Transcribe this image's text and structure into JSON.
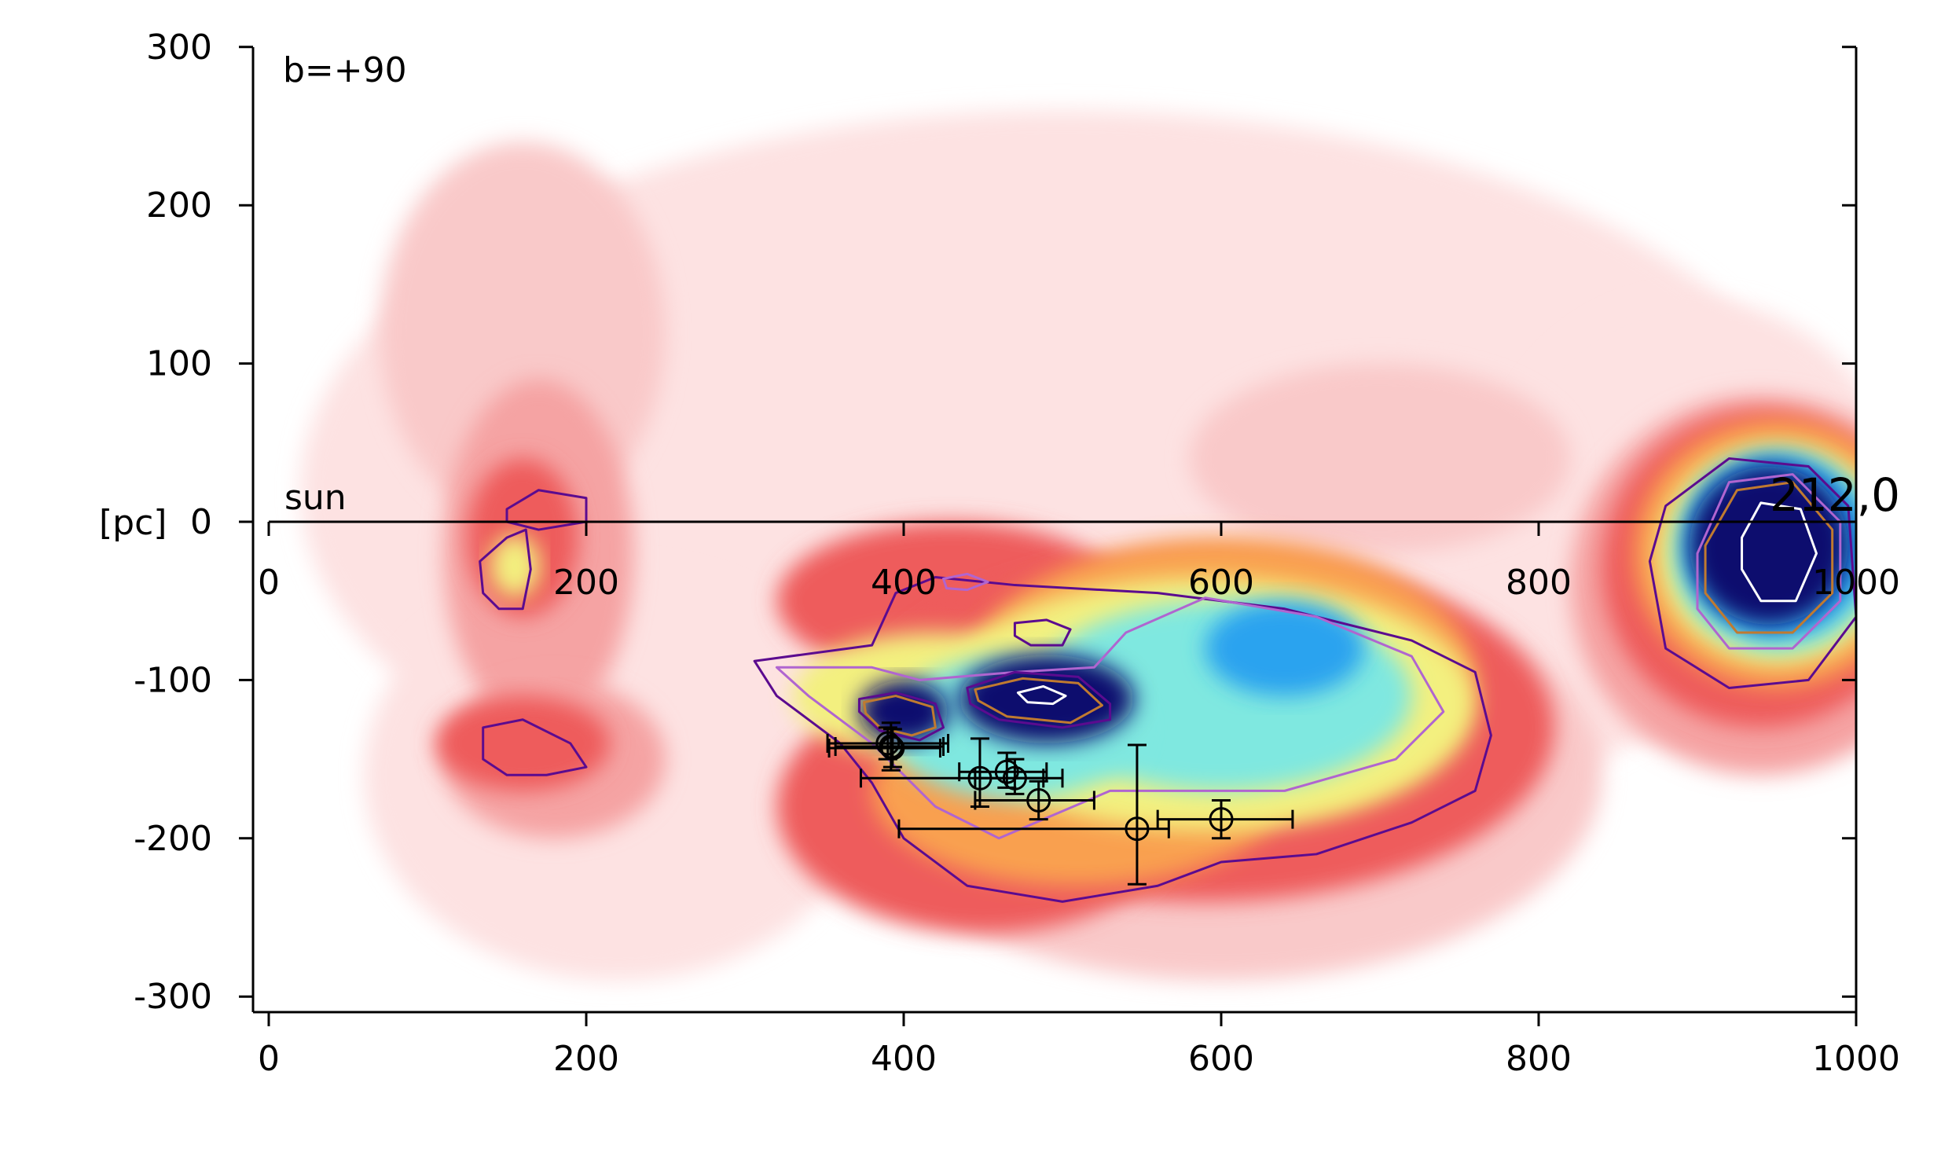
{
  "chart_data": {
    "type": "heatmap",
    "title": "",
    "xlabel": "",
    "ylabel": "[pc]",
    "xlim": [
      0,
      1000
    ],
    "ylim": [
      -300,
      300
    ],
    "x_ticks": [
      "0",
      "200",
      "400",
      "600",
      "800",
      "1000"
    ],
    "y_ticks": [
      "300",
      "200",
      "100",
      "0",
      "-100",
      "-200",
      "-300"
    ],
    "grid": false,
    "legend": "none",
    "annotations": {
      "view": "b=+90",
      "sun": "sun",
      "ylabel_prefix": "[pc]",
      "direction": "212,0"
    },
    "colors": {
      "faint": "#fde2e2",
      "light": "#f9c9c9",
      "mid": "#f5a3a3",
      "red": "#ee5b5b",
      "orange": "#f9a04f",
      "yellow": "#f3f07f",
      "cyan": "#7fe8e0",
      "blue": "#2aa3ef",
      "navy": "#0a0a6e",
      "contour_outer": "#5b0b8f",
      "contour_mid": "#b065d0",
      "contour_inner": "#c07a30",
      "contour_core": "#ffffff"
    },
    "blobs": [
      {
        "cx": 500,
        "cy": 20,
        "rx": 480,
        "ry": 240,
        "level": "faint"
      },
      {
        "cx": 220,
        "cy": -160,
        "rx": 160,
        "ry": 130,
        "level": "faint"
      },
      {
        "cx": 900,
        "cy": 0,
        "rx": 130,
        "ry": 140,
        "level": "faint"
      },
      {
        "cx": 160,
        "cy": 120,
        "rx": 90,
        "ry": 120,
        "level": "light"
      },
      {
        "cx": 700,
        "cy": 40,
        "rx": 120,
        "ry": 60,
        "level": "light"
      },
      {
        "cx": 600,
        "cy": -160,
        "rx": 240,
        "ry": 130,
        "level": "light"
      },
      {
        "cx": 170,
        "cy": -20,
        "rx": 60,
        "ry": 110,
        "level": "mid"
      },
      {
        "cx": 180,
        "cy": -150,
        "rx": 70,
        "ry": 50,
        "level": "mid"
      },
      {
        "cx": 940,
        "cy": -40,
        "rx": 120,
        "ry": 120,
        "level": "mid"
      },
      {
        "cx": 430,
        "cy": -50,
        "rx": 110,
        "ry": 50,
        "level": "red"
      },
      {
        "cx": 590,
        "cy": -130,
        "rx": 220,
        "ry": 110,
        "level": "red"
      },
      {
        "cx": 450,
        "cy": -180,
        "rx": 130,
        "ry": 80,
        "level": "red"
      },
      {
        "cx": 160,
        "cy": -10,
        "rx": 35,
        "ry": 50,
        "level": "red"
      },
      {
        "cx": 160,
        "cy": -140,
        "rx": 55,
        "ry": 30,
        "level": "red"
      },
      {
        "cx": 940,
        "cy": -30,
        "rx": 100,
        "ry": 100,
        "level": "red"
      },
      {
        "cx": 510,
        "cy": -170,
        "rx": 130,
        "ry": 60,
        "level": "orange"
      },
      {
        "cx": 600,
        "cy": -100,
        "rx": 160,
        "ry": 90,
        "level": "orange"
      },
      {
        "cx": 950,
        "cy": -20,
        "rx": 90,
        "ry": 85,
        "level": "orange"
      },
      {
        "cx": 590,
        "cy": -115,
        "rx": 170,
        "ry": 80,
        "level": "yellow"
      },
      {
        "cx": 420,
        "cy": -110,
        "rx": 90,
        "ry": 40,
        "level": "yellow"
      },
      {
        "cx": 155,
        "cy": -28,
        "rx": 16,
        "ry": 20,
        "level": "yellow"
      },
      {
        "cx": 950,
        "cy": -20,
        "rx": 75,
        "ry": 70,
        "level": "yellow"
      },
      {
        "cx": 600,
        "cy": -110,
        "rx": 120,
        "ry": 60,
        "level": "cyan"
      },
      {
        "cx": 470,
        "cy": -130,
        "rx": 80,
        "ry": 45,
        "level": "cyan"
      },
      {
        "cx": 950,
        "cy": -20,
        "rx": 65,
        "ry": 62,
        "level": "cyan"
      },
      {
        "cx": 640,
        "cy": -80,
        "rx": 50,
        "ry": 30,
        "level": "blue"
      },
      {
        "cx": 950,
        "cy": -15,
        "rx": 58,
        "ry": 58,
        "level": "blue"
      },
      {
        "cx": 490,
        "cy": -112,
        "rx": 55,
        "ry": 28,
        "level": "navy"
      },
      {
        "cx": 400,
        "cy": -120,
        "rx": 28,
        "ry": 20,
        "level": "navy"
      },
      {
        "cx": 945,
        "cy": -15,
        "rx": 50,
        "ry": 50,
        "level": "navy"
      }
    ],
    "contours": [
      {
        "level": "contour_outer",
        "points": [
          [
            306,
            -88
          ],
          [
            380,
            -78
          ],
          [
            395,
            -45
          ],
          [
            420,
            -35
          ],
          [
            470,
            -40
          ],
          [
            560,
            -45
          ],
          [
            640,
            -55
          ],
          [
            720,
            -75
          ],
          [
            760,
            -95
          ],
          [
            770,
            -135
          ],
          [
            760,
            -170
          ],
          [
            720,
            -190
          ],
          [
            660,
            -210
          ],
          [
            600,
            -215
          ],
          [
            560,
            -230
          ],
          [
            500,
            -240
          ],
          [
            440,
            -230
          ],
          [
            400,
            -200
          ],
          [
            380,
            -165
          ],
          [
            360,
            -140
          ],
          [
            320,
            -110
          ]
        ]
      },
      {
        "level": "contour_mid",
        "points": [
          [
            320,
            -92
          ],
          [
            380,
            -92
          ],
          [
            410,
            -100
          ],
          [
            470,
            -95
          ],
          [
            520,
            -92
          ],
          [
            540,
            -70
          ],
          [
            590,
            -48
          ],
          [
            660,
            -60
          ],
          [
            720,
            -85
          ],
          [
            740,
            -120
          ],
          [
            710,
            -150
          ],
          [
            640,
            -170
          ],
          [
            580,
            -170
          ],
          [
            530,
            -170
          ],
          [
            460,
            -200
          ],
          [
            420,
            -180
          ],
          [
            400,
            -160
          ],
          [
            380,
            -140
          ],
          [
            340,
            -110
          ]
        ]
      },
      {
        "level": "contour_outer",
        "points": [
          [
            870,
            -25
          ],
          [
            880,
            10
          ],
          [
            920,
            40
          ],
          [
            970,
            35
          ],
          [
            995,
            10
          ],
          [
            1000,
            -60
          ],
          [
            970,
            -100
          ],
          [
            920,
            -105
          ],
          [
            880,
            -80
          ]
        ]
      },
      {
        "level": "contour_mid",
        "points": [
          [
            900,
            -20
          ],
          [
            920,
            25
          ],
          [
            960,
            30
          ],
          [
            990,
            0
          ],
          [
            990,
            -50
          ],
          [
            960,
            -80
          ],
          [
            920,
            -80
          ],
          [
            900,
            -55
          ]
        ]
      },
      {
        "level": "contour_inner",
        "points": [
          [
            905,
            -15
          ],
          [
            925,
            20
          ],
          [
            960,
            25
          ],
          [
            985,
            -5
          ],
          [
            985,
            -45
          ],
          [
            960,
            -70
          ],
          [
            925,
            -70
          ],
          [
            905,
            -45
          ]
        ]
      },
      {
        "level": "contour_core",
        "points": [
          [
            928,
            -10
          ],
          [
            940,
            12
          ],
          [
            965,
            8
          ],
          [
            975,
            -20
          ],
          [
            962,
            -50
          ],
          [
            940,
            -50
          ],
          [
            928,
            -30
          ]
        ]
      },
      {
        "level": "contour_outer",
        "points": [
          [
            133,
            -25
          ],
          [
            150,
            -10
          ],
          [
            162,
            -5
          ],
          [
            165,
            -30
          ],
          [
            160,
            -55
          ],
          [
            145,
            -55
          ],
          [
            135,
            -45
          ]
        ]
      },
      {
        "level": "contour_outer",
        "points": [
          [
            150,
            8
          ],
          [
            170,
            20
          ],
          [
            200,
            15
          ],
          [
            200,
            0
          ],
          [
            170,
            -5
          ],
          [
            150,
            0
          ]
        ]
      },
      {
        "level": "contour_outer",
        "points": [
          [
            135,
            -130
          ],
          [
            160,
            -125
          ],
          [
            190,
            -140
          ],
          [
            200,
            -155
          ],
          [
            175,
            -160
          ],
          [
            150,
            -160
          ],
          [
            135,
            -150
          ]
        ]
      },
      {
        "level": "contour_outer",
        "points": [
          [
            372,
            -112
          ],
          [
            395,
            -108
          ],
          [
            420,
            -115
          ],
          [
            425,
            -130
          ],
          [
            410,
            -138
          ],
          [
            385,
            -132
          ],
          [
            372,
            -120
          ]
        ]
      },
      {
        "level": "contour_inner",
        "points": [
          [
            375,
            -114
          ],
          [
            395,
            -110
          ],
          [
            418,
            -117
          ],
          [
            420,
            -130
          ],
          [
            405,
            -135
          ],
          [
            385,
            -130
          ],
          [
            376,
            -121
          ]
        ]
      },
      {
        "level": "contour_outer",
        "points": [
          [
            440,
            -105
          ],
          [
            470,
            -95
          ],
          [
            510,
            -98
          ],
          [
            530,
            -115
          ],
          [
            530,
            -125
          ],
          [
            500,
            -130
          ],
          [
            460,
            -125
          ],
          [
            442,
            -115
          ]
        ]
      },
      {
        "level": "contour_inner",
        "points": [
          [
            445,
            -106
          ],
          [
            475,
            -99
          ],
          [
            510,
            -102
          ],
          [
            525,
            -116
          ],
          [
            505,
            -127
          ],
          [
            465,
            -123
          ],
          [
            447,
            -113
          ]
        ]
      },
      {
        "level": "contour_core",
        "points": [
          [
            472,
            -108
          ],
          [
            488,
            -104
          ],
          [
            502,
            -110
          ],
          [
            494,
            -115
          ],
          [
            478,
            -114
          ]
        ]
      },
      {
        "level": "contour_outer",
        "points": [
          [
            470,
            -64
          ],
          [
            490,
            -62
          ],
          [
            505,
            -68
          ],
          [
            500,
            -78
          ],
          [
            480,
            -78
          ],
          [
            470,
            -72
          ]
        ]
      },
      {
        "level": "contour_mid",
        "points": [
          [
            425,
            -36
          ],
          [
            440,
            -33
          ],
          [
            453,
            -38
          ],
          [
            440,
            -43
          ],
          [
            427,
            -42
          ]
        ]
      }
    ],
    "points": [
      {
        "x": 390,
        "y": -140,
        "xerr_lo": 38,
        "xerr_hi": 38,
        "yerr_lo": 10,
        "yerr_hi": 10
      },
      {
        "x": 393,
        "y": -143,
        "xerr_lo": 40,
        "xerr_hi": 30,
        "yerr_lo": 12,
        "yerr_hi": 12
      },
      {
        "x": 392,
        "y": -142,
        "xerr_lo": 35,
        "xerr_hi": 33,
        "yerr_lo": 15,
        "yerr_hi": 15
      },
      {
        "x": 448,
        "y": -162,
        "xerr_lo": 75,
        "xerr_hi": 40,
        "yerr_lo": 18,
        "yerr_hi": 25
      },
      {
        "x": 465,
        "y": -158,
        "xerr_lo": 30,
        "xerr_hi": 25,
        "yerr_lo": 10,
        "yerr_hi": 12
      },
      {
        "x": 470,
        "y": -162,
        "xerr_lo": 25,
        "xerr_hi": 30,
        "yerr_lo": 10,
        "yerr_hi": 12
      },
      {
        "x": 485,
        "y": -176,
        "xerr_lo": 40,
        "xerr_hi": 35,
        "yerr_lo": 12,
        "yerr_hi": 12
      },
      {
        "x": 547,
        "y": -194,
        "xerr_lo": 150,
        "xerr_hi": 20,
        "yerr_lo": 35,
        "yerr_hi": 53
      },
      {
        "x": 600,
        "y": -188,
        "xerr_lo": 40,
        "xerr_hi": 45,
        "yerr_lo": 12,
        "yerr_hi": 12
      }
    ]
  }
}
